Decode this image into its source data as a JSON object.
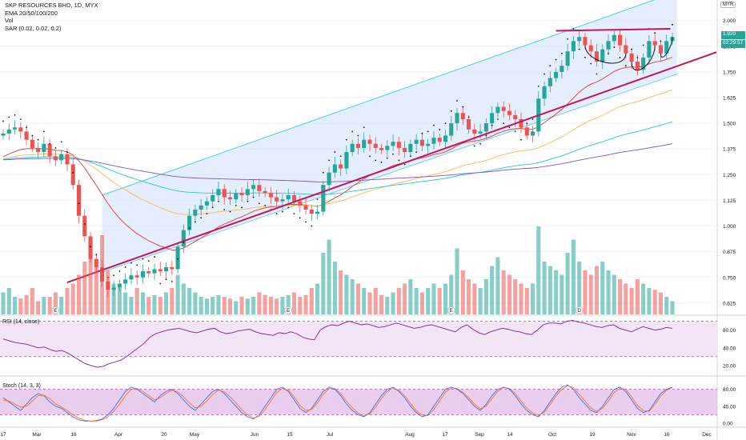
{
  "header": {
    "symbol_line": "SKP RESOURCES BHD, 1D, MYX",
    "ema_label": "EMA 20/50/100/200",
    "vol_label": "Vol",
    "sar_label": "SAR (0.02, 0.02, 0.2)",
    "currency": "MYR"
  },
  "price_tags": {
    "last_price": "1.920",
    "countdown": "02:29:57",
    "last_color": "#26a69a"
  },
  "panes": {
    "rsi_label": "RSI (14, close)",
    "stoch_label": "Stoch (14, 3, 3)"
  },
  "colors": {
    "up": "#26a69a",
    "down": "#ef5350",
    "channel_fill": "#cfe0fa",
    "channel_line": "#4dd0e1",
    "trend_line": "#c2185b",
    "ema20": "#e53935",
    "ema50": "#ffb74d",
    "ema100": "#26c6da",
    "ema200": "#7e57c2",
    "sar": "#131722",
    "rsi_line": "#7b1fa2",
    "rsi_band": "#f3e5f5",
    "stoch_k": "#2962ff",
    "stoch_d": "#ff6d00",
    "stoch_band": "#e1bee7"
  },
  "chart_data": {
    "type": "candlestick",
    "x_tick_labels": [
      "17",
      "Mar",
      "16",
      "Apr",
      "20",
      "May",
      "Jun",
      "15",
      "Jul",
      "Aug",
      "17",
      "Sep",
      "14",
      "Oct",
      "19",
      "Nov",
      "16",
      "Dec"
    ],
    "price_axis": {
      "ticks": [
        "2.000",
        "1.875",
        "1.750",
        "1.625",
        "1.500",
        "1.375",
        "1.250",
        "1.125",
        "1.000",
        "0.875",
        "0.750",
        "0.625"
      ],
      "range": [
        0.57,
        2.1
      ]
    },
    "ohlc_close_approx": [
      1.45,
      1.47,
      1.48,
      1.46,
      1.42,
      1.38,
      1.36,
      1.4,
      1.34,
      1.32,
      1.35,
      1.3,
      1.2,
      1.05,
      0.95,
      0.84,
      0.8,
      0.73,
      0.69,
      0.7,
      0.72,
      0.74,
      0.76,
      0.75,
      0.78,
      0.77,
      0.79,
      0.78,
      0.8,
      0.79,
      0.9,
      0.98,
      1.05,
      1.08,
      1.1,
      1.12,
      1.15,
      1.18,
      1.14,
      1.13,
      1.16,
      1.15,
      1.18,
      1.2,
      1.17,
      1.16,
      1.14,
      1.12,
      1.13,
      1.15,
      1.12,
      1.1,
      1.08,
      1.06,
      1.07,
      1.2,
      1.26,
      1.3,
      1.28,
      1.36,
      1.4,
      1.38,
      1.42,
      1.4,
      1.38,
      1.37,
      1.39,
      1.41,
      1.38,
      1.36,
      1.4,
      1.42,
      1.39,
      1.4,
      1.43,
      1.41,
      1.44,
      1.5,
      1.55,
      1.52,
      1.47,
      1.45,
      1.46,
      1.5,
      1.55,
      1.58,
      1.56,
      1.54,
      1.52,
      1.48,
      1.44,
      1.46,
      1.62,
      1.68,
      1.72,
      1.75,
      1.78,
      1.85,
      1.9,
      1.92,
      1.88,
      1.85,
      1.8,
      1.86,
      1.9,
      1.93,
      1.88,
      1.84,
      1.8,
      1.76,
      1.82,
      1.9,
      1.88,
      1.84,
      1.9,
      1.92
    ],
    "volume_approx": [
      0.25,
      0.3,
      0.2,
      0.18,
      0.22,
      0.3,
      0.15,
      0.2,
      0.2,
      0.25,
      0.2,
      0.3,
      0.35,
      0.45,
      0.6,
      0.7,
      0.55,
      0.9,
      0.5,
      0.35,
      0.3,
      0.25,
      0.2,
      0.3,
      0.25,
      0.2,
      0.22,
      0.2,
      0.25,
      0.3,
      0.45,
      0.35,
      0.3,
      0.25,
      0.2,
      0.18,
      0.2,
      0.22,
      0.2,
      0.18,
      0.15,
      0.2,
      0.18,
      0.2,
      0.25,
      0.22,
      0.2,
      0.18,
      0.2,
      0.22,
      0.25,
      0.2,
      0.22,
      0.3,
      0.35,
      0.7,
      0.85,
      0.6,
      0.5,
      0.45,
      0.4,
      0.35,
      0.3,
      0.25,
      0.3,
      0.22,
      0.2,
      0.25,
      0.3,
      0.35,
      0.4,
      0.3,
      0.25,
      0.3,
      0.35,
      0.3,
      0.35,
      0.45,
      0.75,
      0.5,
      0.4,
      0.35,
      0.3,
      0.4,
      0.55,
      0.65,
      0.5,
      0.45,
      0.4,
      0.35,
      0.3,
      0.35,
      1.0,
      0.6,
      0.55,
      0.5,
      0.45,
      0.7,
      0.85,
      0.6,
      0.5,
      0.45,
      0.55,
      0.6,
      0.5,
      0.45,
      0.4,
      0.35,
      0.3,
      0.4,
      0.35,
      0.3,
      0.28,
      0.25,
      0.2,
      0.15
    ],
    "rsi": {
      "axis_ticks": [
        "60.00",
        "40.00",
        "20.00"
      ],
      "bands": [
        30,
        70
      ],
      "values_approx": [
        50,
        48,
        46,
        45,
        44,
        42,
        40,
        41,
        38,
        36,
        37,
        34,
        30,
        26,
        22,
        20,
        18,
        19,
        22,
        24,
        26,
        30,
        35,
        40,
        45,
        52,
        56,
        58,
        60,
        61,
        62,
        60,
        58,
        57,
        59,
        61,
        62,
        58,
        56,
        57,
        59,
        60,
        61,
        58,
        56,
        55,
        54,
        57,
        56,
        58,
        56,
        52,
        50,
        49,
        60,
        64,
        66,
        65,
        68,
        70,
        68,
        66,
        67,
        65,
        63,
        64,
        66,
        68,
        66,
        64,
        62,
        63,
        65,
        66,
        64,
        62,
        60,
        58,
        63,
        66,
        61,
        57,
        55,
        58,
        60,
        62,
        61,
        59,
        58,
        56,
        55,
        60,
        66,
        68,
        68,
        67,
        70,
        71,
        69,
        68,
        66,
        64,
        63,
        65,
        66,
        62,
        60,
        58,
        61,
        64,
        62,
        60,
        61,
        63,
        62
      ]
    },
    "stoch": {
      "axis_ticks": [
        "80.00",
        "40.00",
        "0.00"
      ],
      "bands": [
        20,
        80
      ],
      "k_approx": [
        60,
        50,
        40,
        30,
        45,
        60,
        70,
        65,
        50,
        40,
        35,
        25,
        15,
        8,
        5,
        5,
        6,
        10,
        20,
        35,
        55,
        75,
        85,
        80,
        70,
        60,
        50,
        65,
        75,
        80,
        70,
        55,
        40,
        30,
        45,
        60,
        75,
        80,
        70,
        55,
        40,
        25,
        15,
        10,
        20,
        40,
        60,
        80,
        85,
        75,
        55,
        35,
        25,
        35,
        55,
        75,
        85,
        80,
        65,
        45,
        30,
        20,
        15,
        25,
        45,
        65,
        80,
        85,
        75,
        60,
        40,
        25,
        15,
        20,
        40,
        60,
        80,
        85,
        80,
        70,
        55,
        40,
        30,
        45,
        65,
        80,
        85,
        80,
        65,
        45,
        30,
        20,
        15,
        30,
        50,
        70,
        85,
        90,
        80,
        60,
        45,
        30,
        25,
        40,
        60,
        80,
        85,
        75,
        55,
        35,
        25,
        30,
        50,
        70,
        80,
        85
      ],
      "d_approx": [
        55,
        52,
        45,
        38,
        40,
        52,
        65,
        66,
        58,
        46,
        38,
        30,
        20,
        12,
        7,
        5,
        5,
        8,
        15,
        28,
        45,
        65,
        80,
        82,
        75,
        65,
        55,
        60,
        70,
        78,
        74,
        62,
        48,
        36,
        40,
        52,
        68,
        78,
        74,
        62,
        48,
        32,
        20,
        12,
        16,
        32,
        52,
        72,
        82,
        78,
        62,
        42,
        30,
        32,
        48,
        68,
        82,
        82,
        70,
        52,
        36,
        24,
        17,
        22,
        38,
        58,
        75,
        83,
        78,
        65,
        47,
        30,
        19,
        18,
        32,
        52,
        73,
        83,
        82,
        73,
        60,
        45,
        34,
        40,
        58,
        75,
        84,
        82,
        70,
        52,
        36,
        24,
        18,
        26,
        44,
        64,
        80,
        88,
        84,
        68,
        52,
        36,
        28,
        35,
        52,
        72,
        83,
        80,
        62,
        42,
        30,
        28,
        44,
        64,
        78,
        84
      ]
    },
    "overlays": [
      {
        "name": "channel_upper",
        "from": [
          0,
          0.98
        ],
        "to": [
          115,
          2.13
        ]
      },
      {
        "name": "channel_lower",
        "from": [
          0,
          0.61
        ],
        "to": [
          115,
          1.73
        ]
      },
      {
        "name": "support_trend",
        "from": [
          0,
          0.615
        ],
        "to": [
          115,
          1.77
        ]
      },
      {
        "name": "neckline",
        "from": [
          95,
          1.95
        ],
        "to": [
          113,
          1.96
        ]
      }
    ]
  }
}
